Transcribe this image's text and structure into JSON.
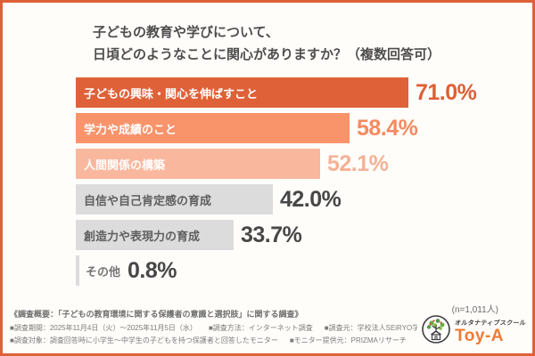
{
  "title": {
    "line1": "子どもの教育や学びについて、",
    "line2": "日頃どのようなことに関心がありますか？（複数回答可）"
  },
  "sample_note": "(n=1,011人)",
  "chart_data": {
    "type": "bar",
    "orientation": "horizontal",
    "unit": "%",
    "title": "子どもの教育や学びについて、日頃どのようなことに関心がありますか？（複数回答可）",
    "categories": [
      "子どもの興味・関心を伸ばすこと",
      "学力や成績のこと",
      "人間関係の構築",
      "自信や自己肯定感の育成",
      "創造力や表現力の育成",
      "その他"
    ],
    "values": [
      71.0,
      58.4,
      52.1,
      42.0,
      33.7,
      0.8
    ],
    "xlim": [
      0,
      75
    ],
    "grid": false,
    "legend": "none",
    "bars": [
      {
        "label": "子どもの興味・関心を伸ばすこと",
        "value": 71.0,
        "display": "71.0%",
        "bar_color": "#df6138",
        "label_color": "#ffffff",
        "value_color": "#de5f36",
        "label_inside": true
      },
      {
        "label": "学力や成績のこと",
        "value": 58.4,
        "display": "58.4%",
        "bar_color": "#f8936a",
        "label_color": "#ffffff",
        "value_color": "#f68a5e",
        "label_inside": true
      },
      {
        "label": "人間関係の構築",
        "value": 52.1,
        "display": "52.1%",
        "bar_color": "#f9b79d",
        "label_color": "#ffffff",
        "value_color": "#f6b195",
        "label_inside": true
      },
      {
        "label": "自信や自己肯定感の育成",
        "value": 42.0,
        "display": "42.0%",
        "bar_color": "#dcdcdc",
        "label_color": "#5f5f5f",
        "value_color": "#474747",
        "label_inside": true
      },
      {
        "label": "創造力や表現力の育成",
        "value": 33.7,
        "display": "33.7%",
        "bar_color": "#dcdcdc",
        "label_color": "#5f5f5f",
        "value_color": "#474747",
        "label_inside": true
      },
      {
        "label": "その他",
        "value": 0.8,
        "display": "0.8%",
        "bar_color": "#dcdcdc",
        "label_color": "#757575",
        "value_color": "#474747",
        "label_inside": false
      }
    ]
  },
  "footer": {
    "line1": "《調査概要：「子どもの教育環境に関する保護者の意識と選択肢」に関する調査》",
    "line2_items": [
      "■調査期間：2025年11月4日（火）～2025年11月5日（水）",
      "■調査方法：インターネット調査",
      "■調査元：学校法人SEiRYO学園"
    ],
    "line3_items": [
      "■調査対象：調査回答時に小学生～中学生の子どもを持つ保護者と回答したモニター",
      "■モニター提供元：PRIZMAリサーチ",
      "■調査人数：1,011人"
    ]
  },
  "logo": {
    "school_type": "オルタナティブスクール",
    "name": "Toy-A",
    "accent_color": "#ef7a35"
  }
}
